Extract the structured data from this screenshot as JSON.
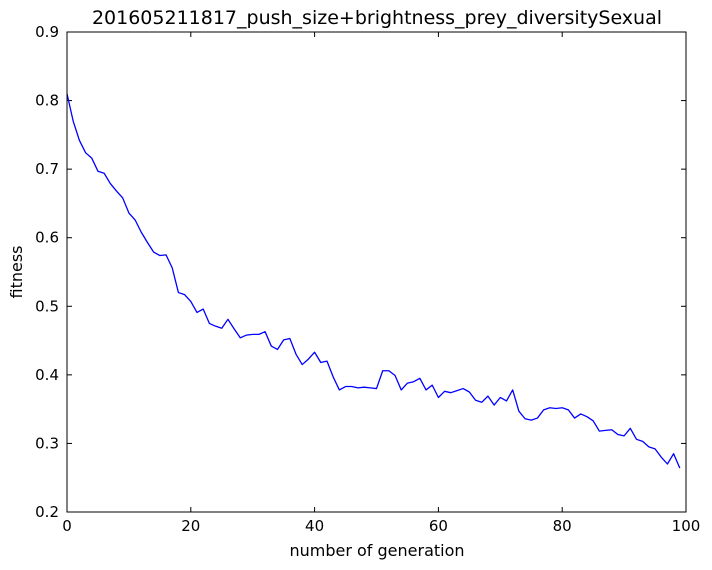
{
  "chart_data": {
    "type": "line",
    "title": "201605211817_push_size+brightness_prey_diversitySexual",
    "xlabel": "number of generation",
    "ylabel": "fitness",
    "xlim": [
      0,
      100
    ],
    "ylim": [
      0.2,
      0.9
    ],
    "x_ticks": [
      0,
      20,
      40,
      60,
      80,
      100
    ],
    "y_ticks": [
      0.2,
      0.3,
      0.4,
      0.5,
      0.6,
      0.7,
      0.8,
      0.9
    ],
    "grid": false,
    "series": [
      {
        "color": "#0000ff",
        "x": [
          0,
          1,
          2,
          3,
          4,
          5,
          6,
          7,
          8,
          9,
          10,
          11,
          12,
          13,
          14,
          15,
          16,
          17,
          18,
          19,
          20,
          21,
          22,
          23,
          24,
          25,
          26,
          27,
          28,
          29,
          30,
          31,
          32,
          33,
          34,
          35,
          36,
          37,
          38,
          39,
          40,
          41,
          42,
          43,
          44,
          45,
          46,
          47,
          48,
          49,
          50,
          51,
          52,
          53,
          54,
          55,
          56,
          57,
          58,
          59,
          60,
          61,
          62,
          63,
          64,
          65,
          66,
          67,
          68,
          69,
          70,
          71,
          72,
          73,
          74,
          75,
          76,
          77,
          78,
          79,
          80,
          81,
          82,
          83,
          84,
          85,
          86,
          87,
          88,
          89,
          90,
          91,
          92,
          93,
          94,
          95,
          96,
          97,
          98,
          99
        ],
        "values": [
          0.81,
          0.77,
          0.742,
          0.724,
          0.716,
          0.697,
          0.694,
          0.679,
          0.668,
          0.658,
          0.636,
          0.626,
          0.608,
          0.593,
          0.579,
          0.574,
          0.575,
          0.556,
          0.52,
          0.517,
          0.507,
          0.491,
          0.496,
          0.475,
          0.471,
          0.468,
          0.481,
          0.467,
          0.454,
          0.458,
          0.459,
          0.459,
          0.463,
          0.442,
          0.437,
          0.451,
          0.453,
          0.43,
          0.415,
          0.423,
          0.433,
          0.418,
          0.42,
          0.397,
          0.378,
          0.383,
          0.383,
          0.381,
          0.382,
          0.381,
          0.38,
          0.406,
          0.406,
          0.399,
          0.378,
          0.388,
          0.39,
          0.395,
          0.378,
          0.385,
          0.367,
          0.376,
          0.374,
          0.377,
          0.38,
          0.375,
          0.363,
          0.36,
          0.369,
          0.356,
          0.367,
          0.362,
          0.378,
          0.347,
          0.336,
          0.334,
          0.337,
          0.349,
          0.352,
          0.351,
          0.352,
          0.349,
          0.337,
          0.343,
          0.339,
          0.333,
          0.318,
          0.319,
          0.32,
          0.313,
          0.311,
          0.322,
          0.306,
          0.303,
          0.295,
          0.292,
          0.28,
          0.27,
          0.285,
          0.264
        ]
      }
    ]
  }
}
